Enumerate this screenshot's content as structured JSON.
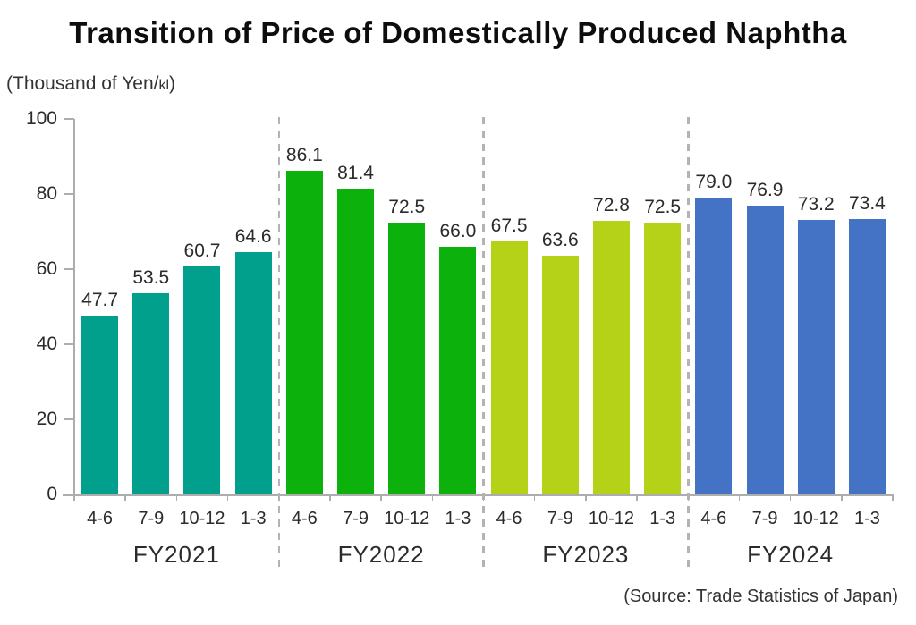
{
  "page": {
    "title": "Transition of Price of Domestically Produced Naphtha",
    "unit_label": {
      "prefix": "(Thousand of Yen/",
      "small_unit": "kl",
      "suffix": ")"
    },
    "source_note": "(Source: Trade Statistics of Japan)"
  },
  "chart_data": {
    "type": "bar",
    "title": "Transition of Price of Domestically Produced Naphtha",
    "ylabel": "Thousand of Yen/kl",
    "xlabel": "",
    "ylim": [
      0,
      100
    ],
    "y_ticks": [
      0,
      20,
      40,
      60,
      80,
      100
    ],
    "grid": false,
    "legend_position": "none",
    "quarters": [
      "4-6",
      "7-9",
      "10-12",
      "1-3"
    ],
    "groups": [
      {
        "name": "FY2021",
        "color": "#00A08C",
        "values": [
          47.7,
          53.5,
          60.7,
          64.6
        ]
      },
      {
        "name": "FY2022",
        "color": "#0CB10C",
        "values": [
          86.1,
          81.4,
          72.5,
          66.0
        ]
      },
      {
        "name": "FY2023",
        "color": "#B5D118",
        "values": [
          67.5,
          63.6,
          72.8,
          72.5
        ]
      },
      {
        "name": "FY2024",
        "color": "#4472C4",
        "values": [
          79.0,
          76.9,
          73.2,
          73.4
        ]
      }
    ],
    "separator_style": "dashed",
    "axis_color": "#ADADAD",
    "source": "(Source: Trade Statistics of Japan)"
  }
}
